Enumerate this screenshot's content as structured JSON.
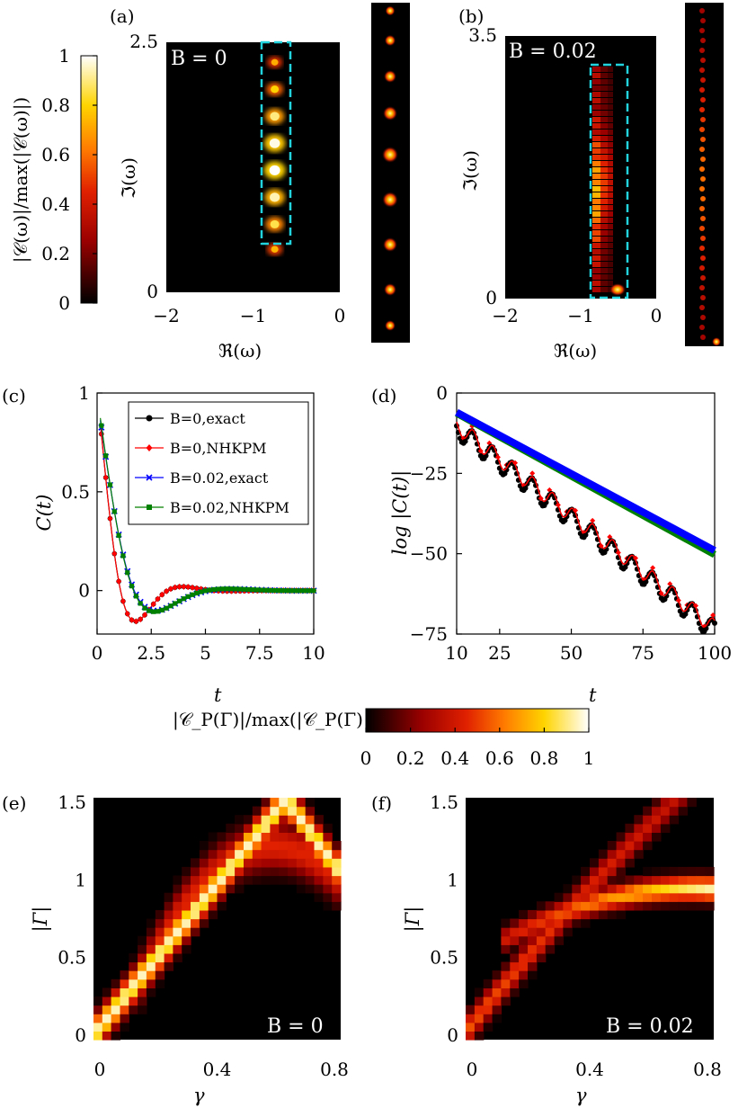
{
  "colorbar_a": {
    "label": "|𝒞(ω)|/max(|𝒞(ω)|)",
    "ticks": [
      "0",
      "0.2",
      "0.4",
      "0.6",
      "0.8",
      "1"
    ]
  },
  "colorbar_e": {
    "label": "|𝒞_P(Γ)|/max(|𝒞_P(Γ)|)",
    "ticks": [
      "0",
      "0.2",
      "0.4",
      "0.6",
      "0.8",
      "1"
    ]
  },
  "chart_data": [
    {
      "panel": "(a)",
      "type": "heatmap",
      "annotation": "B = 0",
      "xlabel": "ℜ(ω)",
      "ylabel": "ℑ(ω)",
      "xticks": [
        "−2",
        "−1",
        "0"
      ],
      "yticks": [
        "0",
        "2.5"
      ],
      "xlim": [
        -2,
        0
      ],
      "ylim": [
        0,
        2.5
      ],
      "peaks": [
        {
          "re": -0.75,
          "im": 0.43,
          "v": 0.35
        },
        {
          "re": -0.75,
          "im": 0.68,
          "v": 0.65
        },
        {
          "re": -0.75,
          "im": 0.95,
          "v": 0.85
        },
        {
          "re": -0.75,
          "im": 1.22,
          "v": 1.0
        },
        {
          "re": -0.75,
          "im": 1.49,
          "v": 0.95
        },
        {
          "re": -0.75,
          "im": 1.76,
          "v": 0.75
        },
        {
          "re": -0.75,
          "im": 2.03,
          "v": 0.5
        },
        {
          "re": -0.75,
          "im": 2.3,
          "v": 0.3
        }
      ]
    },
    {
      "panel": "(b)",
      "type": "heatmap",
      "annotation": "B = 0.02",
      "xlabel": "ℜ(ω)",
      "ylabel": "ℑ(ω)",
      "xticks": [
        "−2",
        "−1",
        "0"
      ],
      "yticks": [
        "0",
        "3.5"
      ],
      "xlim": [
        -2,
        0
      ],
      "ylim": [
        0,
        3.5
      ]
    },
    {
      "panel": "(c)",
      "type": "line",
      "xlabel": "t",
      "ylabel": "C(t)",
      "xticks": [
        "0",
        "2.5",
        "5",
        "7.5",
        "10"
      ],
      "yticks": [
        "0",
        "0.5",
        "1"
      ],
      "xlim": [
        0,
        10
      ],
      "ylim": [
        -0.22,
        1.0
      ],
      "series": [
        {
          "name": "B=0,exact",
          "color": "#000000",
          "marker": "circle",
          "omega": 1.45,
          "decay": 0.95,
          "offset": 0.0
        },
        {
          "name": "B=0,NHKPM",
          "color": "#ff0000",
          "marker": "diamond",
          "omega": 1.45,
          "decay": 0.95,
          "offset": 0.0
        },
        {
          "name": "B=0.02,exact",
          "color": "#0000ff",
          "marker": "cross",
          "omega": 0.95,
          "decay": 0.75,
          "offset": 0.03
        },
        {
          "name": "B=0.02,NHKPM",
          "color": "#008000",
          "marker": "square",
          "omega": 0.95,
          "decay": 0.75,
          "offset": 0.015
        }
      ]
    },
    {
      "panel": "(d)",
      "type": "line",
      "xlabel": "t",
      "ylabel": "log |C(t)|",
      "xticks": [
        "10",
        "25",
        "50",
        "75",
        "100"
      ],
      "yticks": [
        "0",
        "−25",
        "−50",
        "−75"
      ],
      "xlim": [
        10,
        100
      ],
      "ylim": [
        -75,
        0
      ],
      "series": [
        {
          "name": "B=0",
          "start": -10,
          "end": -73,
          "color": "#000000"
        },
        {
          "name": "B=0.02",
          "start": -6,
          "end": -49,
          "color": "#0000ff"
        }
      ]
    },
    {
      "panel": "(e)",
      "type": "heatmap",
      "annotation": "B = 0",
      "xlabel": "γ",
      "ylabel": "|Γ|",
      "xticks": [
        "0",
        "0.4",
        "0.8"
      ],
      "yticks": [
        "0",
        "0.5",
        "1",
        "1.5"
      ],
      "xlim": [
        0,
        0.8
      ],
      "ylim": [
        0,
        1.5
      ]
    },
    {
      "panel": "(f)",
      "type": "heatmap",
      "annotation": "B = 0.02",
      "xlabel": "γ",
      "ylabel": "|Γ|",
      "xticks": [
        "0",
        "0.4",
        "0.8"
      ],
      "yticks": [
        "0",
        "0.5",
        "1",
        "1.5"
      ],
      "xlim": [
        0,
        0.8
      ],
      "ylim": [
        0,
        1.5
      ]
    }
  ]
}
